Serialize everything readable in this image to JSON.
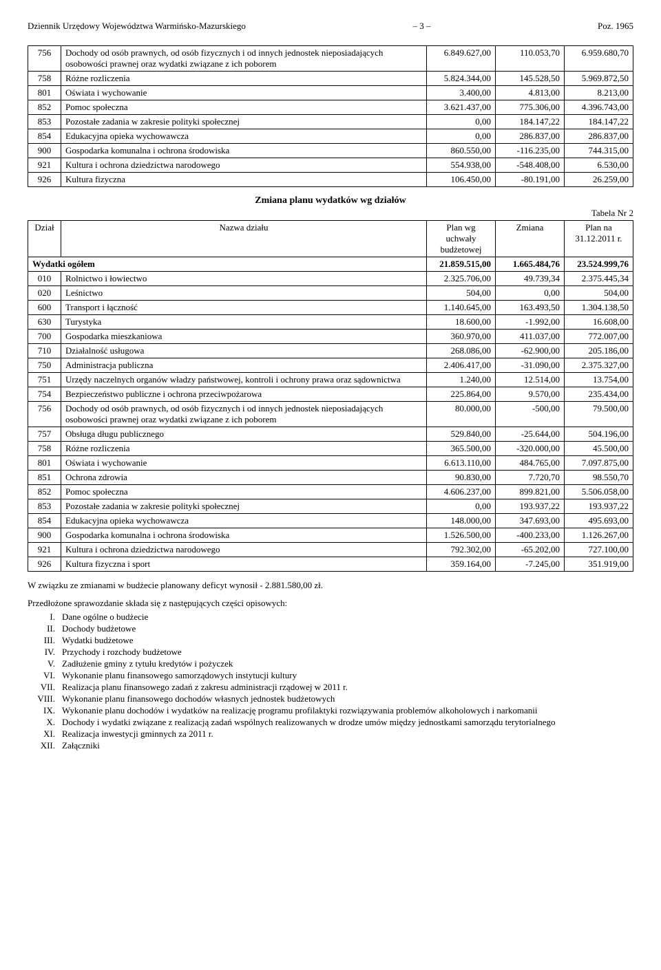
{
  "header": {
    "left": "Dziennik Urzędowy Województwa Warmińsko-Mazurskiego",
    "page": "– 3 –",
    "right": "Poz. 1965"
  },
  "table1": {
    "rows": [
      [
        "756",
        "Dochody od osób prawnych, od osób fizycznych i od innych jednostek nieposiadających osobowości prawnej oraz wydatki związane z ich poborem",
        "6.849.627,00",
        "110.053,70",
        "6.959.680,70"
      ],
      [
        "758",
        "Różne rozliczenia",
        "5.824.344,00",
        "145.528,50",
        "5.969.872,50"
      ],
      [
        "801",
        "Oświata i wychowanie",
        "3.400,00",
        "4.813,00",
        "8.213,00"
      ],
      [
        "852",
        "Pomoc społeczna",
        "3.621.437,00",
        "775.306,00",
        "4.396.743,00"
      ],
      [
        "853",
        "Pozostałe zadania w zakresie polityki społecznej",
        "0,00",
        "184.147,22",
        "184.147,22"
      ],
      [
        "854",
        "Edukacyjna opieka wychowawcza",
        "0,00",
        "286.837,00",
        "286.837,00"
      ],
      [
        "900",
        "Gospodarka komunalna i ochrona środowiska",
        "860.550,00",
        "-116.235,00",
        "744.315,00"
      ],
      [
        "921",
        "Kultura i ochrona dziedzictwa narodowego",
        "554.938,00",
        "-548.408,00",
        "6.530,00"
      ],
      [
        "926",
        "Kultura fizyczna",
        "106.450,00",
        "-80.191,00",
        "26.259,00"
      ]
    ]
  },
  "sectionTitle": "Zmiana planu wydatków wg działów",
  "tableLabel": "Tabela Nr 2",
  "table2": {
    "headers": [
      "Dział",
      "Nazwa działu",
      "Plan wg uchwały budżetowej",
      "Zmiana",
      "Plan na 31.12.2011 r."
    ],
    "totalRow": [
      "",
      "Wydatki ogółem",
      "21.859.515,00",
      "1.665.484,76",
      "23.524.999,76"
    ],
    "rows": [
      [
        "010",
        "Rolnictwo i łowiectwo",
        "2.325.706,00",
        "49.739,34",
        "2.375.445,34"
      ],
      [
        "020",
        "Leśnictwo",
        "504,00",
        "0,00",
        "504,00"
      ],
      [
        "600",
        "Transport i łączność",
        "1.140.645,00",
        "163.493,50",
        "1.304.138,50"
      ],
      [
        "630",
        "Turystyka",
        "18.600,00",
        "-1.992,00",
        "16.608,00"
      ],
      [
        "700",
        "Gospodarka mieszkaniowa",
        "360.970,00",
        "411.037,00",
        "772.007,00"
      ],
      [
        "710",
        "Działalność usługowa",
        "268.086,00",
        "-62.900,00",
        "205.186,00"
      ],
      [
        "750",
        "Administracja publiczna",
        "2.406.417,00",
        "-31.090,00",
        "2.375.327,00"
      ],
      [
        "751",
        "Urzędy naczelnych organów władzy państwowej, kontroli i ochrony prawa oraz sądownictwa",
        "1.240,00",
        "12.514,00",
        "13.754,00"
      ],
      [
        "754",
        "Bezpieczeństwo publiczne i ochrona przeciwpożarowa",
        "225.864,00",
        "9.570,00",
        "235.434,00"
      ],
      [
        "756",
        "Dochody od osób prawnych, od osób fizycznych i od innych jednostek nieposiadających osobowości prawnej oraz wydatki związane z ich poborem",
        "80.000,00",
        "-500,00",
        "79.500,00"
      ],
      [
        "757",
        "Obsługa długu publicznego",
        "529.840,00",
        "-25.644,00",
        "504.196,00"
      ],
      [
        "758",
        "Różne rozliczenia",
        "365.500,00",
        "-320.000,00",
        "45.500,00"
      ],
      [
        "801",
        "Oświata i wychowanie",
        "6.613.110,00",
        "484.765,00",
        "7.097.875,00"
      ],
      [
        "851",
        "Ochrona zdrowia",
        "90.830,00",
        "7.720,70",
        "98.550,70"
      ],
      [
        "852",
        "Pomoc społeczna",
        "4.606.237,00",
        "899.821,00",
        "5.506.058,00"
      ],
      [
        "853",
        "Pozostałe zadania w zakresie polityki społecznej",
        "0,00",
        "193.937,22",
        "193.937,22"
      ],
      [
        "854",
        "Edukacyjna opieka wychowawcza",
        "148.000,00",
        "347.693,00",
        "495.693,00"
      ],
      [
        "900",
        "Gospodarka komunalna i ochrona środowiska",
        "1.526.500,00",
        "-400.233,00",
        "1.126.267,00"
      ],
      [
        "921",
        "Kultura i ochrona dziedzictwa narodowego",
        "792.302,00",
        "-65.202,00",
        "727.100,00"
      ],
      [
        "926",
        "Kultura fizyczna i sport",
        "359.164,00",
        "-7.245,00",
        "351.919,00"
      ]
    ]
  },
  "para1": "W związku ze zmianami w budżecie planowany deficyt wynosił - 2.881.580,00 zł.",
  "listIntro": "Przedłożone sprawozdanie składa się z następujących części opisowych:",
  "list": [
    [
      "I.",
      "Dane ogólne o budżecie"
    ],
    [
      "II.",
      "Dochody budżetowe"
    ],
    [
      "III.",
      "Wydatki budżetowe"
    ],
    [
      "IV.",
      "Przychody i rozchody budżetowe"
    ],
    [
      "V.",
      "Zadłużenie gminy z tytułu kredytów i pożyczek"
    ],
    [
      "VI.",
      "Wykonanie planu finansowego samorządowych instytucji kultury"
    ],
    [
      "VII.",
      "Realizacja planu finansowego zadań z zakresu administracji rządowej w 2011 r."
    ],
    [
      "VIII.",
      "Wykonanie planu finansowego dochodów własnych jednostek budżetowych"
    ],
    [
      "IX.",
      "Wykonanie planu dochodów i wydatków na realizację programu profilaktyki rozwiązywania problemów alkoholowych i narkomanii"
    ],
    [
      "X.",
      "Dochody i wydatki związane z realizacją zadań wspólnych realizowanych w drodze umów między jednostkami samorządu terytorialnego"
    ],
    [
      "XI.",
      "Realizacja inwestycji gminnych za 2011 r."
    ],
    [
      "XII.",
      "Załączniki"
    ]
  ],
  "colWidths": {
    "c1": "48px",
    "c2": "auto",
    "c3": "100px",
    "c4": "100px",
    "c5": "100px"
  }
}
